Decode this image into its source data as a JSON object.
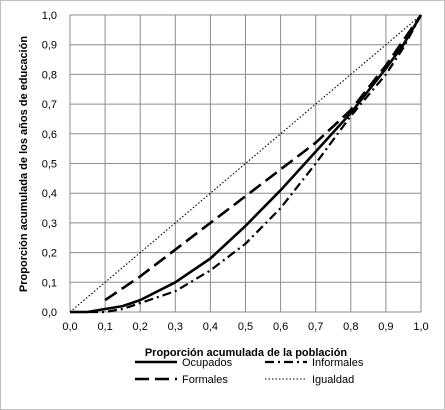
{
  "chart_data": {
    "type": "line",
    "xlabel": "Proporción acumulada  de la población",
    "ylabel": "Proporción acumulada  de los años de educación",
    "xlim": [
      0,
      1
    ],
    "ylim": [
      0,
      1
    ],
    "grid": true,
    "legend_position": "bottom",
    "x_ticks": [
      "0,0",
      "0,1",
      "0,2",
      "0,3",
      "0,4",
      "0,5",
      "0,6",
      "0,7",
      "0,8",
      "0,9",
      "1,0"
    ],
    "y_ticks": [
      "0,0",
      "0,1",
      "0,2",
      "0,3",
      "0,4",
      "0,5",
      "0,6",
      "0,7",
      "0,8",
      "0,9",
      "1,0"
    ],
    "series": [
      {
        "name": "Ocupados",
        "style": "solid",
        "x": [
          0,
          0.05,
          0.1,
          0.15,
          0.2,
          0.3,
          0.4,
          0.5,
          0.6,
          0.7,
          0.8,
          0.9,
          0.95,
          1.0
        ],
        "y": [
          0,
          0.0,
          0.01,
          0.02,
          0.04,
          0.1,
          0.18,
          0.29,
          0.41,
          0.54,
          0.67,
          0.82,
          0.9,
          1.0
        ]
      },
      {
        "name": "Informales",
        "style": "dashdot",
        "x": [
          0,
          0.05,
          0.1,
          0.15,
          0.2,
          0.3,
          0.4,
          0.5,
          0.6,
          0.7,
          0.8,
          0.9,
          0.95,
          1.0
        ],
        "y": [
          0,
          0.0,
          0.0,
          0.01,
          0.03,
          0.07,
          0.14,
          0.23,
          0.35,
          0.5,
          0.66,
          0.8,
          0.89,
          1.0
        ]
      },
      {
        "name": "Formales",
        "style": "longdash",
        "x": [
          0.1,
          0.2,
          0.3,
          0.4,
          0.5,
          0.6,
          0.7,
          0.8,
          0.9,
          1.0
        ],
        "y": [
          0.04,
          0.12,
          0.21,
          0.3,
          0.39,
          0.48,
          0.57,
          0.68,
          0.83,
          1.0
        ]
      },
      {
        "name": "Igualdad",
        "style": "dotted",
        "x": [
          0,
          1
        ],
        "y": [
          0,
          1
        ]
      }
    ]
  }
}
